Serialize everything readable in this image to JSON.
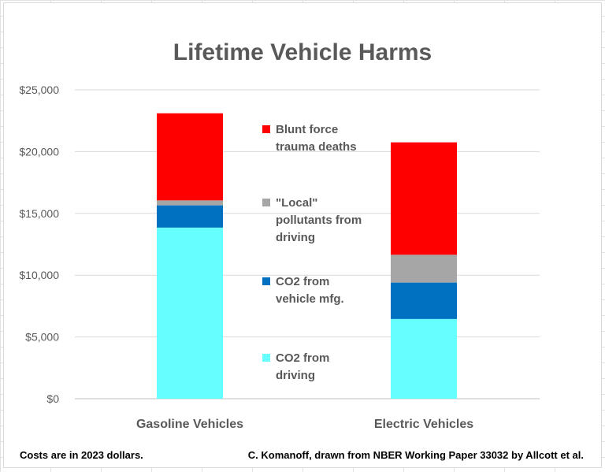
{
  "chart_data": {
    "type": "bar",
    "stacked": true,
    "title": "Lifetime Vehicle Harms",
    "categories": [
      "Gasoline Vehicles",
      "Electric Vehicles"
    ],
    "y_ticks": [
      "$0",
      "$5,000",
      "$10,000",
      "$15,000",
      "$20,000",
      "$25,000"
    ],
    "ylim": [
      0,
      25000
    ],
    "grid": true,
    "legend_position": "center",
    "series": [
      {
        "name": "CO2 from driving",
        "legend_lines": [
          "CO2 from",
          "driving"
        ],
        "color": "#66FFFF",
        "values": [
          13850,
          6450
        ]
      },
      {
        "name": "CO2 from vehicle mfg.",
        "legend_lines": [
          "CO2 from",
          "vehicle mfg."
        ],
        "color": "#0070C0",
        "values": [
          1800,
          2950
        ]
      },
      {
        "name": "\"Local\" pollutants from driving",
        "legend_lines": [
          "\"Local\"",
          "pollutants from",
          "driving"
        ],
        "color": "#A6A6A6",
        "values": [
          400,
          2250
        ]
      },
      {
        "name": "Blunt force trauma deaths",
        "legend_lines": [
          "Blunt force",
          "trauma deaths"
        ],
        "color": "#FF0000",
        "values": [
          7050,
          9100
        ]
      }
    ]
  },
  "footnotes": {
    "left": "Costs are in 2023 dollars.",
    "right": "C. Komanoff, drawn from NBER Working Paper 33032 by Allcott et al."
  }
}
